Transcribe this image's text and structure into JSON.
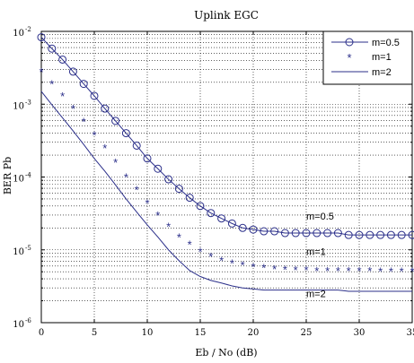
{
  "chart_data": {
    "type": "line",
    "title": "Uplink EGC",
    "xlabel": "Eb / No (dB)",
    "ylabel": "BER Pb",
    "xlim": [
      0,
      35
    ],
    "ylim_log10": [
      -6,
      -2
    ],
    "yscale": "log",
    "grid": true,
    "legend_position": "top-right",
    "x_ticks": [
      "0",
      "5",
      "10",
      "15",
      "20",
      "25",
      "30",
      "35"
    ],
    "y_ticks": [
      {
        "base": "10",
        "exp": "-2",
        "log10": -2
      },
      {
        "base": "10",
        "exp": "-3",
        "log10": -3
      },
      {
        "base": "10",
        "exp": "-4",
        "log10": -4
      },
      {
        "base": "10",
        "exp": "-5",
        "log10": -5
      },
      {
        "base": "10",
        "exp": "-6",
        "log10": -6
      }
    ],
    "x": [
      0,
      1,
      2,
      3,
      4,
      5,
      6,
      7,
      8,
      9,
      10,
      11,
      12,
      13,
      14,
      15,
      16,
      17,
      18,
      19,
      20,
      21,
      22,
      23,
      24,
      25,
      26,
      27,
      28,
      29,
      30,
      31,
      32,
      33,
      34,
      35
    ],
    "series": [
      {
        "name": "m=0.5",
        "marker": "circle",
        "line": true,
        "color": "#2b2f8a",
        "annotation": "m=0.5",
        "values": [
          0.0083,
          0.0058,
          0.0041,
          0.0028,
          0.0019,
          0.0013,
          0.00087,
          0.00059,
          0.0004,
          0.00027,
          0.00018,
          0.00013,
          9.3e-05,
          6.9e-05,
          5.2e-05,
          4e-05,
          3.2e-05,
          2.7e-05,
          2.3e-05,
          2e-05,
          1.9e-05,
          1.8e-05,
          1.8e-05,
          1.7e-05,
          1.7e-05,
          1.7e-05,
          1.7e-05,
          1.7e-05,
          1.7e-05,
          1.6e-05,
          1.6e-05,
          1.6e-05,
          1.6e-05,
          1.6e-05,
          1.6e-05,
          1.6e-05
        ]
      },
      {
        "name": "m=1",
        "marker": "star",
        "line": false,
        "color": "#2b2f8a",
        "annotation": "m=1",
        "values": [
          0.0028,
          0.0019,
          0.0013,
          0.00087,
          0.00058,
          0.00038,
          0.00025,
          0.00016,
          0.0001,
          6.7e-05,
          4.4e-05,
          3e-05,
          2.1e-05,
          1.5e-05,
          1.2e-05,
          9.5e-06,
          8.2e-06,
          7.2e-06,
          6.6e-06,
          6.2e-06,
          5.9e-06,
          5.7e-06,
          5.5e-06,
          5.4e-06,
          5.3e-06,
          5.3e-06,
          5.2e-06,
          5.2e-06,
          5.2e-06,
          5.2e-06,
          5.2e-06,
          5.2e-06,
          5.1e-06,
          5.1e-06,
          5.1e-06,
          5.1e-06
        ]
      },
      {
        "name": "m=2",
        "marker": "none",
        "line": true,
        "color": "#2b2f8a",
        "annotation": "m=2",
        "values": [
          0.0015,
          0.00098,
          0.00065,
          0.00043,
          0.00028,
          0.00018,
          0.00012,
          7.8e-05,
          5e-05,
          3.3e-05,
          2.2e-05,
          1.5e-05,
          1e-05,
          7.1e-06,
          5.2e-06,
          4.3e-06,
          3.8e-06,
          3.5e-06,
          3.2e-06,
          3e-06,
          2.9e-06,
          2.8e-06,
          2.8e-06,
          2.8e-06,
          2.8e-06,
          2.8e-06,
          2.8e-06,
          2.8e-06,
          2.8e-06,
          2.7e-06,
          2.7e-06,
          2.7e-06,
          2.7e-06,
          2.7e-06,
          2.7e-06,
          2.7e-06
        ]
      }
    ],
    "annotation_x": [
      25,
      25,
      25
    ],
    "annotation_y": [
      2.9e-05,
      9.5e-06,
      2.5e-06
    ]
  }
}
